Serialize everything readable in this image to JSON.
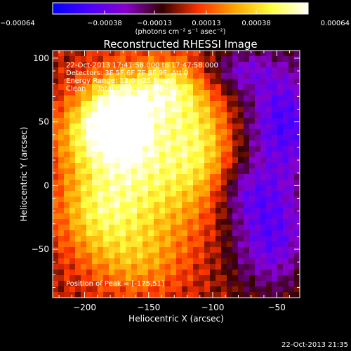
{
  "chart_data": {
    "type": "heatmap",
    "title": "Reconstructed RHESSI Image",
    "xlabel": "Heliocentric X (arcsec)",
    "ylabel": "Heliocentric Y (arcsec)",
    "xlim": [
      -225,
      -32
    ],
    "ylim": [
      -88,
      106
    ],
    "x_ticks": [
      -200,
      -150,
      -100,
      -50
    ],
    "y_ticks": [
      -50,
      0,
      50,
      100
    ],
    "x_tick_labels": [
      "−200",
      "−150",
      "−100",
      "−50"
    ],
    "y_tick_labels": [
      "−50",
      "0",
      "50",
      "100"
    ],
    "colorbar": {
      "range": [
        -0.00064,
        0.00064
      ],
      "ticks": [
        -0.00064,
        -0.00038,
        -0.00013,
        0.00013,
        0.00038,
        0.00064
      ],
      "tick_labels": [
        "−0.00064",
        "−0.00038",
        "−0.00013",
        "0.00013",
        "0.00038",
        "0.00064"
      ],
      "units": "(photons cm⁻² s⁻¹ asec⁻²)",
      "colors": [
        "#0000ff",
        "#4b00ff",
        "#8800cc",
        "#330000",
        "#ff3300",
        "#ffa500",
        "#ffff40",
        "#ffffff"
      ]
    },
    "annotations": [
      "22-Oct-2013 17:41:58.000 to 17:47:58.000",
      "Detectors: 3F 5F 6F 7F 8F 9F, Att 0",
      "Energy Range: 12.0 - 25.0 keV",
      "Clean     Total counts: 2.26E+04",
      "Position of Peak = [-175,51]"
    ],
    "peak_position": [
      -175,
      51
    ],
    "emission_sources": [
      {
        "x": -175,
        "y": 51,
        "sx": 18,
        "sy": 22,
        "amp": 0.00064
      },
      {
        "x": -150,
        "y": 15,
        "sx": 35,
        "sy": 45,
        "amp": 0.00045
      },
      {
        "x": -190,
        "y": -20,
        "sx": 22,
        "sy": 25,
        "amp": 0.0003
      },
      {
        "x": -135,
        "y": 75,
        "sx": 18,
        "sy": 16,
        "amp": 0.00034
      },
      {
        "x": -110,
        "y": 35,
        "sx": 18,
        "sy": 28,
        "amp": 0.00025
      },
      {
        "x": -160,
        "y": -60,
        "sx": 25,
        "sy": 20,
        "amp": 0.00018
      },
      {
        "x": -205,
        "y": 40,
        "sx": 15,
        "sy": 20,
        "amp": 0.0002
      }
    ],
    "negative_sources": [
      {
        "x": -45,
        "y": 50,
        "sx": 22,
        "sy": 35,
        "amp": 0.00045
      },
      {
        "x": -55,
        "y": -40,
        "sx": 22,
        "sy": 30,
        "amp": 0.0004
      },
      {
        "x": -80,
        "y": 90,
        "sx": 18,
        "sy": 12,
        "amp": 0.00025
      },
      {
        "x": -75,
        "y": -5,
        "sx": 15,
        "sy": 15,
        "amp": 0.0002
      }
    ]
  },
  "footer": {
    "timestamp": "22-Oct-2013 21:35"
  }
}
